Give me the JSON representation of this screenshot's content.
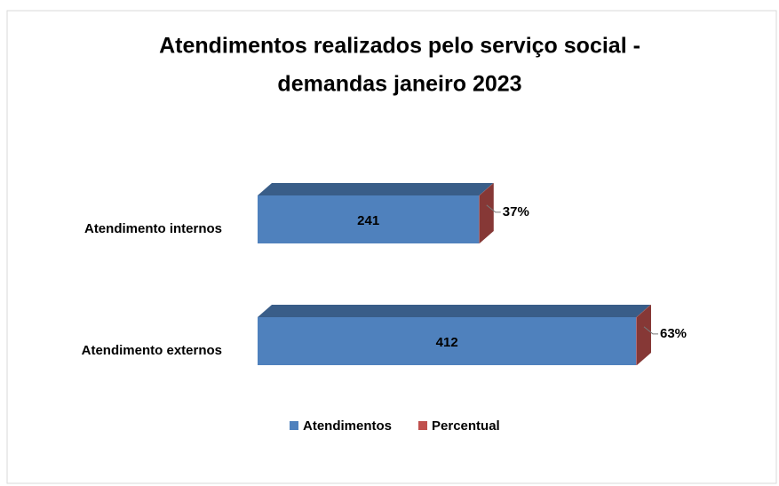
{
  "chart_data": {
    "type": "bar3d_stacked_horizontal",
    "title": "Atendimentos realizados pelo serviço social -",
    "subtitle": "demandas janeiro 2023",
    "categories": [
      "Atendimento internos",
      "Atendimento externos"
    ],
    "series": [
      {
        "name": "Atendimentos",
        "color": "#4f81bd",
        "values": [
          241,
          412
        ]
      },
      {
        "name": "Percentual",
        "color": "#c0504d",
        "values": [
          0.37,
          0.63
        ],
        "value_labels": [
          "37%",
          "63%"
        ]
      }
    ],
    "legend": "bottom"
  }
}
